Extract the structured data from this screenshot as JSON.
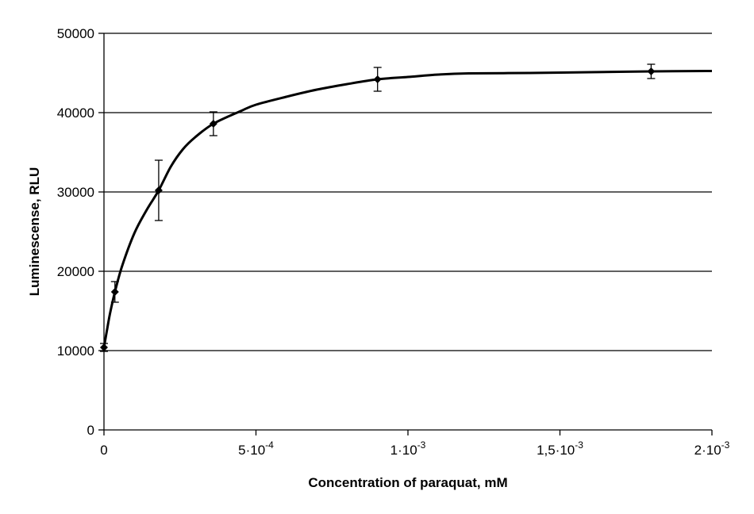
{
  "chart_data": {
    "type": "scatter",
    "title": "",
    "xlabel": "Concentration of paraquat, mM",
    "ylabel": "Luminescense, RLU",
    "xlim": [
      0,
      0.002
    ],
    "ylim": [
      0,
      50000
    ],
    "grid": {
      "horizontal": true,
      "vertical": false
    },
    "y_ticks": [
      {
        "value": 0,
        "label": "0"
      },
      {
        "value": 10000,
        "label": "10000"
      },
      {
        "value": 20000,
        "label": "20000"
      },
      {
        "value": 30000,
        "label": "30000"
      },
      {
        "value": 40000,
        "label": "40000"
      },
      {
        "value": 50000,
        "label": "50000"
      }
    ],
    "x_ticks": [
      {
        "value": 0,
        "mantissa": "0",
        "exponent": ""
      },
      {
        "value": 0.0005,
        "mantissa": "5·10",
        "exponent": "-4"
      },
      {
        "value": 0.001,
        "mantissa": "1·10",
        "exponent": "-3"
      },
      {
        "value": 0.0015,
        "mantissa": "1,5·10",
        "exponent": "-3"
      },
      {
        "value": 0.002,
        "mantissa": "2·10",
        "exponent": "-3"
      }
    ],
    "series": [
      {
        "points": [
          {
            "x": 0,
            "y": 10400,
            "err": 500
          },
          {
            "x": 3.6e-05,
            "y": 17400,
            "err": 1300
          },
          {
            "x": 0.00018,
            "y": 30200,
            "err": 3800
          },
          {
            "x": 0.00036,
            "y": 38600,
            "err": 1500
          },
          {
            "x": 0.0009,
            "y": 44200,
            "err": 1500
          },
          {
            "x": 0.0018,
            "y": 45200,
            "err": 900
          }
        ],
        "fit_curve": [
          [
            0,
            10400
          ],
          [
            1e-05,
            12600
          ],
          [
            2e-05,
            14700
          ],
          [
            3.6e-05,
            17400
          ],
          [
            6e-05,
            20700
          ],
          [
            0.0001,
            24800
          ],
          [
            0.00014,
            27700
          ],
          [
            0.00018,
            30200
          ],
          [
            0.00022,
            33200
          ],
          [
            0.00026,
            35400
          ],
          [
            0.0003,
            36900
          ],
          [
            0.00036,
            38600
          ],
          [
            0.00045,
            40200
          ],
          [
            0.0005,
            41000
          ],
          [
            0.0006,
            42000
          ],
          [
            0.0007,
            42900
          ],
          [
            0.0008,
            43600
          ],
          [
            0.0009,
            44200
          ],
          [
            0.001,
            44500
          ],
          [
            0.0011,
            44800
          ],
          [
            0.0012,
            44950
          ],
          [
            0.0014,
            45000
          ],
          [
            0.0016,
            45100
          ],
          [
            0.0018,
            45200
          ],
          [
            0.002,
            45250
          ]
        ]
      }
    ]
  }
}
